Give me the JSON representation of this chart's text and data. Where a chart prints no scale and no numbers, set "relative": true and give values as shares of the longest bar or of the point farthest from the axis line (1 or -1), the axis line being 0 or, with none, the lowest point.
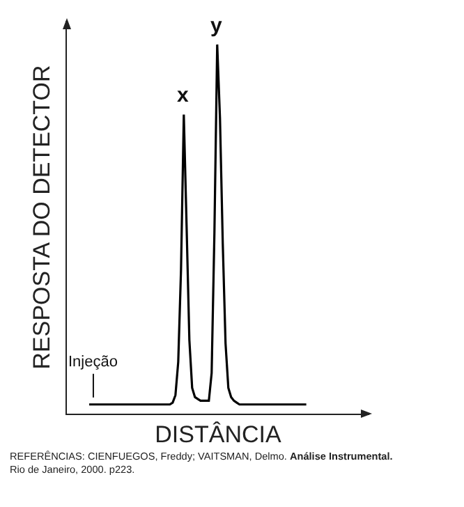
{
  "chart_data": {
    "type": "line",
    "relative": true,
    "xlabel": "DISTÂNCIA",
    "ylabel": "RESPOSTA DO DETECTOR",
    "categories": [
      null,
      null,
      null,
      null,
      null,
      null,
      null,
      null,
      null,
      null,
      null,
      null,
      null,
      null,
      null,
      null,
      null,
      null,
      null,
      null,
      null,
      null,
      null,
      null,
      null,
      null,
      null,
      null,
      null,
      null,
      null,
      null,
      null,
      null,
      null,
      null,
      null,
      null,
      null,
      null,
      null,
      null,
      null,
      null,
      null,
      null,
      null,
      null,
      null,
      null,
      null,
      null,
      null,
      null,
      null,
      null,
      null,
      null,
      null,
      null,
      null,
      null,
      null,
      null,
      null,
      null,
      null,
      null,
      null,
      null,
      null,
      null,
      null,
      null,
      null,
      null,
      null,
      null,
      null
    ],
    "series": [
      {
        "color": "#000000",
        "values": [
          0.025,
          0.025,
          0.025,
          0.025,
          0.025,
          0.025,
          0.025,
          0.025,
          0.025,
          0.025,
          0.025,
          0.025,
          0.025,
          0.025,
          0.025,
          0.025,
          0.025,
          0.025,
          0.025,
          0.025,
          0.025,
          0.025,
          0.025,
          0.025,
          0.025,
          0.025,
          0.025,
          0.025,
          0.025,
          0.025,
          0.03,
          0.05,
          0.14,
          0.39,
          0.81,
          0.51,
          0.2,
          0.07,
          0.045,
          0.04,
          0.035,
          0.035,
          0.035,
          0.035,
          0.11,
          0.49,
          1,
          0.8,
          0.46,
          0.19,
          0.07,
          0.045,
          0.035,
          0.03,
          0.025,
          0.025,
          0.025,
          0.025,
          0.025,
          0.025,
          0.025,
          0.025,
          0.025,
          0.025,
          0.025,
          0.025,
          0.025,
          0.025,
          0.025,
          0.025,
          0.025,
          0.025,
          0.025,
          0.025,
          0.025,
          0.025,
          0.025,
          0.025,
          0.025
        ]
      }
    ],
    "grid": false,
    "marker": "none",
    "line_style": "solid",
    "annotations": [
      {
        "text": "x",
        "y": 0.81
      },
      {
        "text": "y",
        "y": 1
      },
      {
        "text": "Injeção",
        "y": 0.025
      },
      "REFERÊNCIAS: CIENFUEGOS, Freddy; VAITSMAN, Delmo.",
      "Análise Instrumental.",
      "Rio de Janeiro, 2000. p223."
    ]
  }
}
